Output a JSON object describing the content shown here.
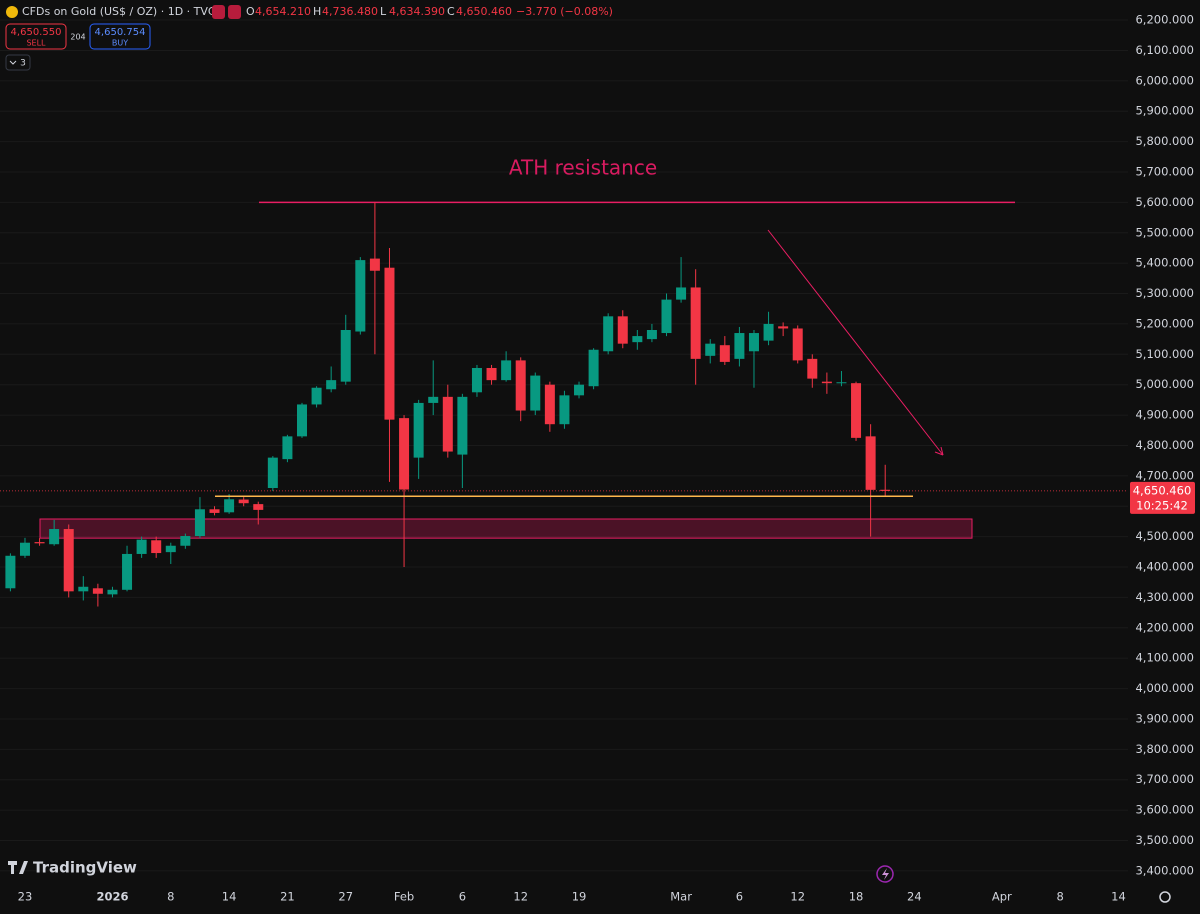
{
  "header": {
    "symbol": "CFDs on Gold (US$ / OZ) · 1D · TVC",
    "ohlc": [
      {
        "key": "O",
        "value": "4,654.210"
      },
      {
        "key": "H",
        "value": "4,736.480"
      },
      {
        "key": "L",
        "value": "4,634.390"
      },
      {
        "key": "C",
        "value": "4,650.460"
      }
    ],
    "change": "−3.770 (−0.08%)",
    "sell_price": "4,650.550",
    "sell_label": "SELL",
    "spread": "204",
    "buy_price": "4,650.754",
    "buy_label": "BUY",
    "indicators": "3"
  },
  "brand": "TradingView",
  "chart_data": {
    "type": "candlestick",
    "categories": [
      null,
      "23",
      null,
      null,
      null,
      null,
      null,
      "2026",
      null,
      null,
      null,
      "8",
      null,
      null,
      null,
      "14",
      null,
      null,
      null,
      "21",
      null,
      null,
      null,
      "27",
      null,
      null,
      null,
      "Feb",
      null,
      null,
      null,
      "6",
      null,
      null,
      null,
      "12",
      null,
      null,
      null,
      "19",
      null,
      null,
      null,
      null,
      null,
      null,
      "Mar",
      null,
      null,
      null,
      "6",
      null,
      null,
      null,
      "12",
      null,
      null,
      null,
      "18",
      null,
      null,
      null,
      "24",
      null,
      null,
      null,
      null,
      null,
      "Apr",
      null,
      null,
      null,
      "8",
      null,
      null,
      null,
      "14"
    ],
    "open": [
      4330,
      4437,
      4482,
      4475,
      4525,
      4320,
      4330,
      4310,
      4325,
      4443,
      4488,
      4449,
      4470,
      4502,
      4590,
      4580,
      4622,
      4607,
      4660,
      4755,
      4830,
      4935,
      4985,
      5010,
      5175,
      5415,
      5385,
      4890,
      4760,
      4940,
      4960,
      4770,
      4975,
      5055,
      5015,
      5080,
      4915,
      5000,
      4870,
      4965,
      4995,
      5110,
      5225,
      5140,
      5150,
      5170,
      5280,
      5320,
      5095,
      5130,
      5085,
      5110,
      5145,
      5192,
      5185,
      5085,
      5010,
      5005,
      5005,
      4830,
      4654.21,
      null,
      null,
      null,
      null,
      null,
      null,
      null,
      null,
      null,
      null,
      null,
      null,
      null,
      null,
      null,
      null
    ],
    "high": [
      4445,
      4496,
      4495,
      4555,
      4540,
      4370,
      4345,
      4335,
      4470,
      4500,
      4500,
      4480,
      4510,
      4630,
      4600,
      4640,
      4630,
      4615,
      4765,
      4835,
      4940,
      4995,
      5060,
      5230,
      5420,
      5600,
      5450,
      4900,
      4950,
      5080,
      5000,
      4970,
      5065,
      5065,
      5110,
      5090,
      5040,
      5010,
      4980,
      5010,
      5120,
      5235,
      5245,
      5180,
      5200,
      5300,
      5420,
      5380,
      5150,
      5160,
      5190,
      5180,
      5240,
      5205,
      5195,
      5100,
      5040,
      5045,
      5010,
      4870,
      4736.48,
      null,
      null,
      null,
      null,
      null,
      null,
      null,
      null,
      null,
      null,
      null,
      null,
      null,
      null,
      null,
      null
    ],
    "low": [
      4320,
      4430,
      4470,
      4470,
      4300,
      4290,
      4270,
      4300,
      4320,
      4430,
      4430,
      4410,
      4460,
      4495,
      4570,
      4575,
      4600,
      4540,
      4650,
      4745,
      4825,
      4925,
      4975,
      5000,
      5165,
      5100,
      4680,
      4400,
      4690,
      4900,
      4760,
      4660,
      4960,
      5000,
      5010,
      4880,
      4900,
      4845,
      4855,
      4955,
      4985,
      5100,
      5120,
      5115,
      5140,
      5160,
      5270,
      5000,
      5070,
      5065,
      5060,
      4990,
      5130,
      5160,
      5070,
      4990,
      4970,
      4995,
      4815,
      4500,
      4634.39,
      null,
      null,
      null,
      null,
      null,
      null,
      null,
      null,
      null,
      null,
      null,
      null,
      null,
      null,
      null,
      null
    ],
    "close": [
      4437,
      4480,
      4478,
      4525,
      4320,
      4335,
      4312,
      4325,
      4443,
      4490,
      4446,
      4470,
      4502,
      4590,
      4578,
      4623,
      4610,
      4588,
      4760,
      4830,
      4935,
      4990,
      5015,
      5180,
      5410,
      5375,
      4885,
      4655,
      4940,
      4960,
      4780,
      4960,
      5055,
      5015,
      5080,
      4915,
      5030,
      4870,
      4965,
      5000,
      5115,
      5225,
      5135,
      5160,
      5180,
      5280,
      5320,
      5085,
      5135,
      5075,
      5170,
      5170,
      5200,
      5185,
      5080,
      5020,
      5005,
      5008,
      4825,
      4654,
      4650.46,
      null,
      null,
      null,
      null,
      null,
      null,
      null,
      null,
      null,
      null,
      null,
      null,
      null,
      null,
      null,
      null
    ],
    "up_color": "#089981",
    "down_color": "#f23645",
    "ylim": [
      3370,
      6266
    ],
    "yticks": [
      {
        "value": 3400,
        "label": "3,400.000"
      },
      {
        "value": 3500,
        "label": "3,500.000"
      },
      {
        "value": 3600,
        "label": "3,600.000"
      },
      {
        "value": 3700,
        "label": "3,700.000"
      },
      {
        "value": 3800,
        "label": "3,800.000"
      },
      {
        "value": 3900,
        "label": "3,900.000"
      },
      {
        "value": 4000,
        "label": "4,000.000"
      },
      {
        "value": 4100,
        "label": "4,100.000"
      },
      {
        "value": 4200,
        "label": "4,200.000"
      },
      {
        "value": 4300,
        "label": "4,300.000"
      },
      {
        "value": 4400,
        "label": "4,400.000"
      },
      {
        "value": 4500,
        "label": "4,500.000"
      },
      {
        "value": 4600,
        "label": "4,600.000"
      },
      {
        "value": 4700,
        "label": "4,700.000"
      },
      {
        "value": 4800,
        "label": "4,800.000"
      },
      {
        "value": 4900,
        "label": "4,900.000"
      },
      {
        "value": 5000,
        "label": "5,000.000"
      },
      {
        "value": 5100,
        "label": "5,100.000"
      },
      {
        "value": 5200,
        "label": "5,200.000"
      },
      {
        "value": 5300,
        "label": "5,300.000"
      },
      {
        "value": 5400,
        "label": "5,400.000"
      },
      {
        "value": 5500,
        "label": "5,500.000"
      },
      {
        "value": 5600,
        "label": "5,600.000"
      },
      {
        "value": 5700,
        "label": "5,700.000"
      },
      {
        "value": 5800,
        "label": "5,800.000"
      },
      {
        "value": 5900,
        "label": "5,900.000"
      },
      {
        "value": 6000,
        "label": "6,000.000"
      },
      {
        "value": 6100,
        "label": "6,100.000"
      },
      {
        "value": 6200,
        "label": "6,200.000"
      }
    ],
    "grid": true,
    "last_price_label": "4,650.460",
    "countdown": "10:25:42",
    "annotation": "ATH resistance",
    "resistance_level": 5600,
    "support_level": 4633,
    "zone": [
      4495,
      4558
    ]
  }
}
